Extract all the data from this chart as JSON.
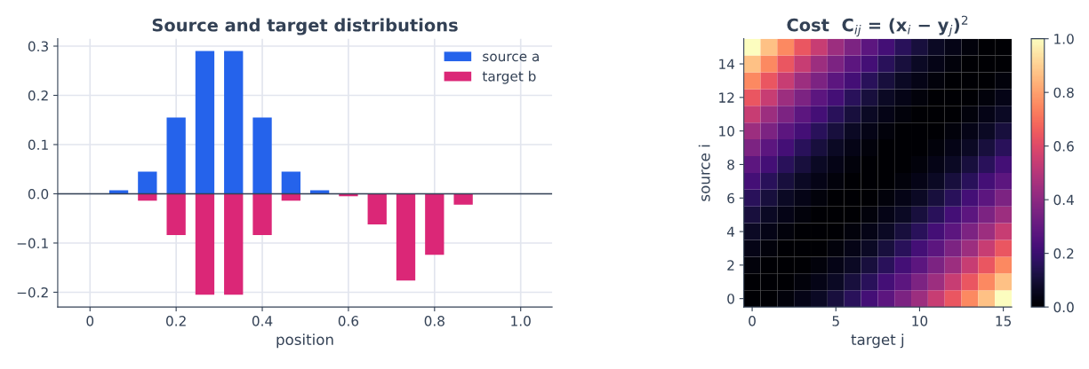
{
  "chart_data": [
    {
      "type": "bar",
      "title": "Source and target distributions",
      "xlabel": "position",
      "xlim": [
        -0.075,
        1.073
      ],
      "xticks": [
        0,
        {
          "value": 0.2,
          "label": "0.2"
        },
        {
          "value": 0.4,
          "label": "0.4"
        },
        {
          "value": 0.6,
          "label": "0.6"
        },
        {
          "value": 0.8,
          "label": "0.8"
        },
        {
          "value": 1,
          "label": "1.0"
        }
      ],
      "ylim": [
        -0.23,
        0.315
      ],
      "yticks": [
        {
          "value": -0.2,
          "label": "−0.2"
        },
        {
          "value": -0.1,
          "label": "−0.1"
        },
        {
          "value": 0,
          "label": "0.0"
        },
        0.1,
        0.2,
        0.3
      ],
      "x": [
        0,
        0.0667,
        0.1333,
        0.2,
        0.2667,
        0.3333,
        0.4,
        0.4667,
        0.5333,
        0.6,
        0.6667,
        0.7333,
        0.8,
        0.8667,
        0.9333,
        1
      ],
      "series": [
        {
          "name": "source a",
          "color": "#2563eb",
          "values": [
            0,
            0.007,
            0.045,
            0.155,
            0.29,
            0.29,
            0.155,
            0.045,
            0.007,
            0,
            0,
            0,
            0,
            0,
            0,
            0
          ]
        },
        {
          "name": "target b",
          "color": "#db2777",
          "values": [
            0,
            0,
            -0.014,
            -0.084,
            -0.205,
            -0.205,
            -0.084,
            -0.014,
            0,
            -0.005,
            -0.062,
            -0.176,
            -0.124,
            -0.022,
            0,
            0
          ]
        }
      ],
      "ref_lines": [
        {
          "axis": "y",
          "value": 0,
          "color": "#334155"
        }
      ],
      "grid": true,
      "legend": "top right"
    },
    {
      "type": "heatmap",
      "title": "Cost  C$_{ij}$ = (x$_{i}$ − y$_{j}$)$^{2}$",
      "xlabel": "target j",
      "ylabel": "source i",
      "categories": [
        "0",
        null,
        null,
        null,
        null,
        "5",
        null,
        null,
        null,
        null,
        "10",
        null,
        null,
        null,
        null,
        "15"
      ],
      "y_categories": [
        null,
        "14",
        null,
        "12",
        null,
        "10",
        null,
        "8",
        null,
        "6",
        null,
        "4",
        null,
        "2",
        null,
        "0"
      ],
      "clim": [
        0,
        1
      ],
      "cticks": [
        {
          "value": 0,
          "label": "0.0"
        },
        0.2,
        0.4,
        0.6,
        0.8,
        {
          "value": 1,
          "label": "1.0"
        }
      ],
      "cells": [
        [
          1,
          0.87,
          0.75,
          0.64,
          0.54,
          0.44,
          0.36,
          0.28,
          0.22,
          0.16,
          0.11,
          0.07,
          0.04,
          0.02,
          0.0,
          0
        ],
        [
          0.87,
          0.75,
          0.64,
          0.54,
          0.44,
          0.36,
          0.28,
          0.22,
          0.16,
          0.11,
          0.07,
          0.04,
          0.02,
          0.0,
          0,
          0.0
        ],
        [
          0.75,
          0.64,
          0.54,
          0.44,
          0.36,
          0.28,
          0.22,
          0.16,
          0.11,
          0.07,
          0.04,
          0.02,
          0.0,
          0,
          0.0,
          0.02
        ],
        [
          0.64,
          0.54,
          0.44,
          0.36,
          0.28,
          0.22,
          0.16,
          0.11,
          0.07,
          0.04,
          0.02,
          0.0,
          0,
          0.0,
          0.02,
          0.04
        ],
        [
          0.54,
          0.44,
          0.36,
          0.28,
          0.22,
          0.16,
          0.11,
          0.07,
          0.04,
          0.02,
          0.0,
          0,
          0.0,
          0.02,
          0.04,
          0.07
        ],
        [
          0.44,
          0.36,
          0.28,
          0.22,
          0.16,
          0.11,
          0.07,
          0.04,
          0.02,
          0.0,
          0,
          0.0,
          0.02,
          0.04,
          0.07,
          0.11
        ],
        [
          0.36,
          0.28,
          0.22,
          0.16,
          0.11,
          0.07,
          0.04,
          0.02,
          0.0,
          0,
          0.0,
          0.02,
          0.04,
          0.07,
          0.11,
          0.16
        ],
        [
          0.28,
          0.22,
          0.16,
          0.11,
          0.07,
          0.04,
          0.02,
          0.0,
          0,
          0.0,
          0.02,
          0.04,
          0.07,
          0.11,
          0.16,
          0.22
        ],
        [
          0.22,
          0.16,
          0.11,
          0.07,
          0.04,
          0.02,
          0.0,
          0,
          0.0,
          0.02,
          0.04,
          0.07,
          0.11,
          0.16,
          0.22,
          0.28
        ],
        [
          0.16,
          0.11,
          0.07,
          0.04,
          0.02,
          0.0,
          0,
          0.0,
          0.02,
          0.04,
          0.07,
          0.11,
          0.16,
          0.22,
          0.28,
          0.36
        ],
        [
          0.11,
          0.07,
          0.04,
          0.02,
          0.0,
          0,
          0.0,
          0.02,
          0.04,
          0.07,
          0.11,
          0.16,
          0.22,
          0.28,
          0.36,
          0.44
        ],
        [
          0.07,
          0.04,
          0.02,
          0.0,
          0,
          0.0,
          0.02,
          0.04,
          0.07,
          0.11,
          0.16,
          0.22,
          0.28,
          0.36,
          0.44,
          0.54
        ],
        [
          0.04,
          0.02,
          0.0,
          0,
          0.0,
          0.02,
          0.04,
          0.07,
          0.11,
          0.16,
          0.22,
          0.28,
          0.36,
          0.44,
          0.54,
          0.64
        ],
        [
          0.02,
          0.0,
          0,
          0.0,
          0.02,
          0.04,
          0.07,
          0.11,
          0.16,
          0.22,
          0.28,
          0.36,
          0.44,
          0.54,
          0.64,
          0.75
        ],
        [
          0.0,
          0,
          0.0,
          0.02,
          0.04,
          0.07,
          0.11,
          0.16,
          0.22,
          0.28,
          0.36,
          0.44,
          0.54,
          0.64,
          0.75,
          0.87
        ],
        [
          0,
          0.0,
          0.02,
          0.04,
          0.07,
          0.11,
          0.16,
          0.22,
          0.28,
          0.36,
          0.44,
          0.54,
          0.64,
          0.75,
          0.87,
          1
        ]
      ]
    }
  ]
}
